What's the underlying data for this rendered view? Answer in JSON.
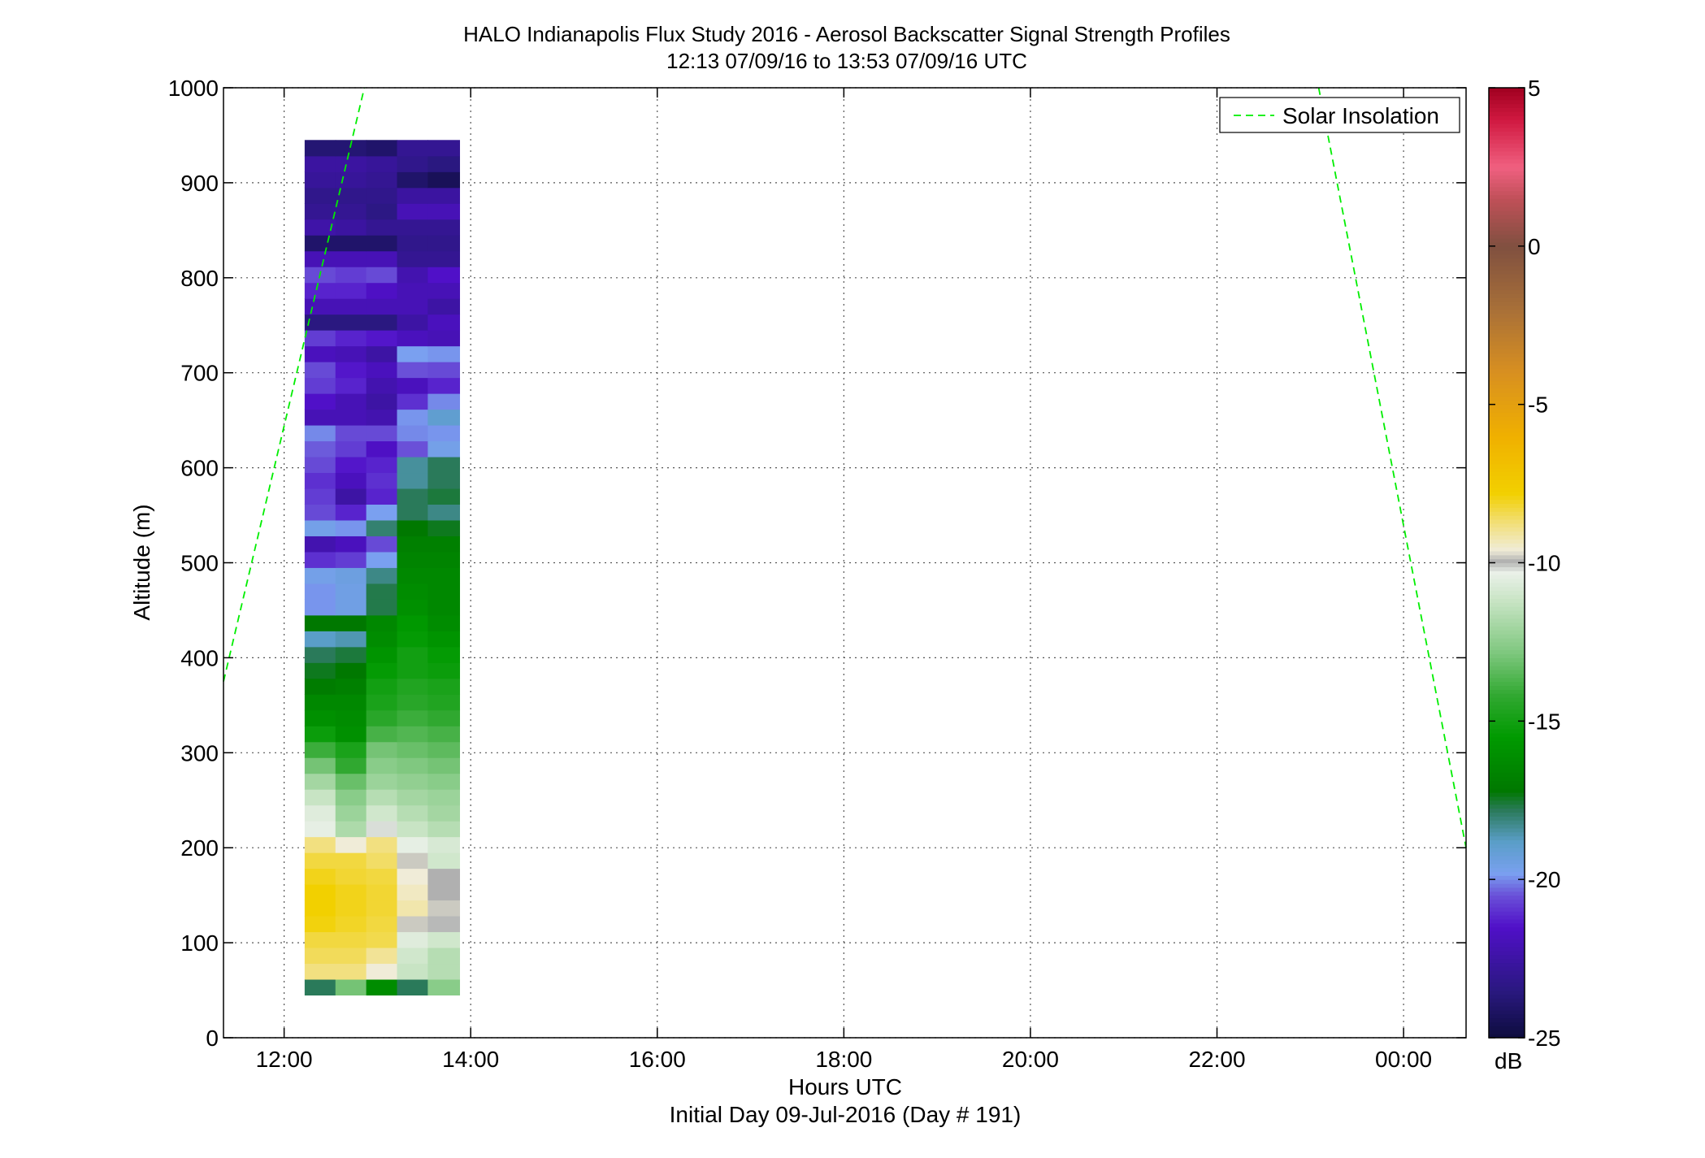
{
  "chart_data": {
    "type": "heatmap",
    "title": "HALO Indianapolis Flux Study 2016 - Aerosol Backscatter Signal Strength Profiles",
    "subtitle": "12:13 07/09/16 to 13:53 07/09/16  UTC",
    "xlabel": "Hours UTC",
    "xlabel2": "Initial Day 09-Jul-2016 (Day # 191)",
    "ylabel": "Altitude (m)",
    "xlim": [
      11.35,
      24.67
    ],
    "ylim": [
      0,
      1000
    ],
    "grid": true,
    "x_ticks": [
      12,
      14,
      16,
      18,
      20,
      22,
      24
    ],
    "x_tick_labels": [
      "12:00",
      "14:00",
      "16:00",
      "18:00",
      "20:00",
      "22:00",
      "00:00"
    ],
    "y_ticks": [
      0,
      100,
      200,
      300,
      400,
      500,
      600,
      700,
      800,
      900,
      1000
    ],
    "y_tick_labels": [
      "0",
      "100",
      "200",
      "300",
      "400",
      "500",
      "600",
      "700",
      "800",
      "900",
      "1000"
    ],
    "colorbar": {
      "unit": "dB",
      "range": [
        -25,
        5
      ],
      "ticks": [
        5,
        0,
        -5,
        -10,
        -15,
        -20,
        -25
      ],
      "tick_labels": [
        "5",
        "0",
        "-5",
        "-10",
        "-15",
        "-20",
        "-25"
      ],
      "stops": [
        {
          "v": -25,
          "c": "#0d0d3d"
        },
        {
          "v": -23.5,
          "c": "#2a1880"
        },
        {
          "v": -21.5,
          "c": "#5010c8"
        },
        {
          "v": -20.5,
          "c": "#6a50d8"
        },
        {
          "v": -19.8,
          "c": "#7aa0f0"
        },
        {
          "v": -18.8,
          "c": "#5a9ec8"
        },
        {
          "v": -17.8,
          "c": "#2a7a5a"
        },
        {
          "v": -17.2,
          "c": "#007800"
        },
        {
          "v": -15.5,
          "c": "#009a00"
        },
        {
          "v": -14.2,
          "c": "#30a830"
        },
        {
          "v": -12.8,
          "c": "#80c880"
        },
        {
          "v": -11.2,
          "c": "#c8e4c4"
        },
        {
          "v": -10.3,
          "c": "#eaf0e8"
        },
        {
          "v": -9.95,
          "c": "#b0b0b0"
        },
        {
          "v": -9.6,
          "c": "#f0ecd8"
        },
        {
          "v": -8.8,
          "c": "#f2e080"
        },
        {
          "v": -7.8,
          "c": "#f2d000"
        },
        {
          "v": -6.0,
          "c": "#f0b000"
        },
        {
          "v": -4.0,
          "c": "#d89020"
        },
        {
          "v": -2.0,
          "c": "#a87038"
        },
        {
          "v": 0.0,
          "c": "#805040"
        },
        {
          "v": 1.5,
          "c": "#c05058"
        },
        {
          "v": 2.5,
          "c": "#f06080"
        },
        {
          "v": 4.0,
          "c": "#d01840"
        },
        {
          "v": 5.0,
          "c": "#a00020"
        }
      ]
    },
    "heatmap": {
      "x_edges": [
        12.22,
        12.55,
        12.88,
        13.21,
        13.54,
        13.88
      ],
      "y_start": 45,
      "y_step": 16.667,
      "rows_bottom_to_top": [
        [
          -17.8,
          -13.0,
          -16.2,
          -17.8,
          -12.6
        ],
        [
          -8.8,
          -8.8,
          -9.6,
          -11.2,
          -11.6
        ],
        [
          -8.5,
          -8.5,
          -9.0,
          -11.0,
          -11.6
        ],
        [
          -8.3,
          -8.3,
          -8.4,
          -10.6,
          -11.0
        ],
        [
          -7.9,
          -8.1,
          -8.3,
          -9.8,
          -10.0
        ],
        [
          -7.8,
          -8.0,
          -8.2,
          -9.2,
          -9.8
        ],
        [
          -7.8,
          -8.0,
          -8.2,
          -9.4,
          -9.95
        ],
        [
          -8.0,
          -8.2,
          -8.3,
          -9.6,
          -9.95
        ],
        [
          -8.3,
          -8.3,
          -8.6,
          -9.8,
          -11.0
        ],
        [
          -8.8,
          -9.6,
          -8.8,
          -10.4,
          -10.8
        ],
        [
          -10.4,
          -11.8,
          -10.2,
          -11.2,
          -11.6
        ],
        [
          -10.6,
          -12.2,
          -11.0,
          -11.6,
          -12.0
        ],
        [
          -11.2,
          -12.6,
          -11.6,
          -12.0,
          -12.2
        ],
        [
          -12.0,
          -13.2,
          -12.2,
          -12.4,
          -12.6
        ],
        [
          -13.0,
          -14.2,
          -12.6,
          -12.8,
          -13.0
        ],
        [
          -14.0,
          -14.8,
          -13.0,
          -13.2,
          -13.4
        ],
        [
          -15.2,
          -16.0,
          -13.8,
          -13.6,
          -13.8
        ],
        [
          -16.0,
          -16.2,
          -14.4,
          -14.0,
          -14.2
        ],
        [
          -16.4,
          -16.4,
          -14.8,
          -14.4,
          -14.6
        ],
        [
          -17.0,
          -16.8,
          -15.0,
          -14.6,
          -14.8
        ],
        [
          -17.4,
          -17.2,
          -15.4,
          -15.0,
          -15.2
        ],
        [
          -17.8,
          -17.6,
          -15.8,
          -15.0,
          -15.4
        ],
        [
          -18.8,
          -18.6,
          -16.2,
          -15.4,
          -15.8
        ],
        [
          -17.2,
          -17.2,
          -16.4,
          -15.6,
          -16.2
        ],
        [
          -19.9,
          -19.5,
          -17.7,
          -16.0,
          -16.4
        ],
        [
          -19.9,
          -19.5,
          -17.7,
          -16.2,
          -16.4
        ],
        [
          -19.6,
          -19.4,
          -18.2,
          -16.4,
          -16.4
        ],
        [
          -21.0,
          -20.8,
          -19.8,
          -16.6,
          -16.6
        ],
        [
          -22.2,
          -21.8,
          -20.6,
          -16.8,
          -16.8
        ],
        [
          -19.6,
          -19.9,
          -18.0,
          -17.2,
          -17.4
        ],
        [
          -20.6,
          -21.2,
          -19.8,
          -17.8,
          -18.2
        ],
        [
          -20.8,
          -22.5,
          -21.2,
          -17.8,
          -17.6
        ],
        [
          -21.0,
          -21.8,
          -21.0,
          -18.4,
          -17.8
        ],
        [
          -20.6,
          -21.4,
          -21.2,
          -18.4,
          -17.8
        ],
        [
          -20.4,
          -20.8,
          -21.6,
          -20.5,
          -19.6
        ],
        [
          -20.0,
          -20.6,
          -20.6,
          -20.0,
          -19.9
        ],
        [
          -22.0,
          -22.0,
          -22.2,
          -19.9,
          -19.0
        ],
        [
          -21.5,
          -22.0,
          -22.5,
          -21.0,
          -20.0
        ],
        [
          -20.8,
          -21.2,
          -22.2,
          -21.8,
          -21.2
        ],
        [
          -20.6,
          -21.4,
          -21.8,
          -20.5,
          -20.6
        ],
        [
          -21.8,
          -22.0,
          -22.5,
          -19.8,
          -19.9
        ],
        [
          -20.8,
          -21.2,
          -21.4,
          -21.8,
          -22.0
        ],
        [
          -23.5,
          -23.5,
          -23.5,
          -22.5,
          -21.8
        ],
        [
          -22.0,
          -22.0,
          -22.0,
          -22.0,
          -22.5
        ],
        [
          -21.2,
          -21.2,
          -21.6,
          -22.0,
          -22.0
        ],
        [
          -20.6,
          -20.8,
          -20.6,
          -22.2,
          -21.5
        ],
        [
          -22.0,
          -22.0,
          -22.0,
          -23.0,
          -23.0
        ],
        [
          -24.0,
          -24.0,
          -24.0,
          -23.2,
          -23.2
        ],
        [
          -22.4,
          -22.6,
          -23.0,
          -23.0,
          -23.0
        ],
        [
          -23.0,
          -23.0,
          -23.4,
          -22.0,
          -22.0
        ],
        [
          -23.2,
          -23.2,
          -23.2,
          -22.6,
          -22.6
        ],
        [
          -22.8,
          -22.8,
          -23.0,
          -24.0,
          -24.4
        ],
        [
          -22.6,
          -22.6,
          -22.8,
          -23.2,
          -23.5
        ],
        [
          -23.8,
          -23.8,
          -24.0,
          -23.0,
          -23.0
        ]
      ]
    },
    "series": [
      {
        "name": "Solar Insolation",
        "style": "dashed",
        "color": "#00ee00",
        "segments": [
          {
            "x": [
              11.35,
              12.86
            ],
            "y": [
              375,
              1000
            ]
          },
          {
            "x": [
              23.09,
              24.67
            ],
            "y": [
              1000,
              200
            ]
          }
        ]
      }
    ],
    "legend_position": "top-right"
  }
}
